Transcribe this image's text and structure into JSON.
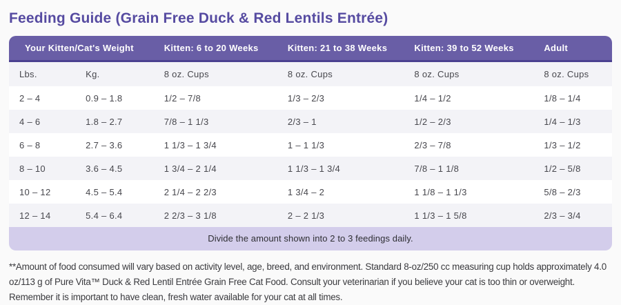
{
  "page": {
    "title": "Feeding Guide (Grain Free Duck & Red Lentils Entrée)"
  },
  "colors": {
    "page_bg": "#fafafa",
    "title_color": "#564ba1",
    "header_bg": "#695ea6",
    "header_border": "#4b4190",
    "subheader_bg": "#f3f3f7",
    "row_alt_bg": "#f3f3f7",
    "footer_bg": "#d3cdeb",
    "body_text": "#47474d",
    "footnote_text": "#3a3a3e"
  },
  "table": {
    "group_headers": [
      {
        "label": "Your Kitten/Cat's Weight",
        "span": 2
      },
      {
        "label": "Kitten: 6 to 20 Weeks",
        "span": 1
      },
      {
        "label": "Kitten: 21 to 38 Weeks",
        "span": 1
      },
      {
        "label": "Kitten: 39 to 52 Weeks",
        "span": 1
      },
      {
        "label": "Adult",
        "span": 1
      }
    ],
    "column_headers": [
      "Lbs.",
      "Kg.",
      "8 oz. Cups",
      "8 oz. Cups",
      "8 oz. Cups",
      "8 oz. Cups"
    ],
    "rows": [
      [
        "2 – 4",
        "0.9 – 1.8",
        "1/2 – 7/8",
        "1/3 – 2/3",
        "1/4 – 1/2",
        "1/8 – 1/4"
      ],
      [
        "4 – 6",
        "1.8 – 2.7",
        "7/8 – 1 1/3",
        "2/3 – 1",
        "1/2 – 2/3",
        "1/4 – 1/3"
      ],
      [
        "6 – 8",
        "2.7 – 3.6",
        "1 1/3 – 1 3/4",
        "1 – 1 1/3",
        "2/3 – 7/8",
        "1/3 – 1/2"
      ],
      [
        "8 – 10",
        "3.6 – 4.5",
        "1 3/4 – 2 1/4",
        "1 1/3 – 1 3/4",
        "7/8 – 1 1/8",
        "1/2 – 5/8"
      ],
      [
        "10 – 12",
        "4.5 – 5.4",
        "2 1/4 – 2 2/3",
        "1 3/4 – 2",
        "1 1/8 – 1 1/3",
        "5/8 – 2/3"
      ],
      [
        "12 – 14",
        "5.4 – 6.4",
        "2 2/3 – 3 1/8",
        "2 – 2 1/3",
        "1 1/3 – 1 5/8",
        "2/3 – 3/4"
      ]
    ],
    "footer_note": "Divide the amount shown into 2 to 3 feedings daily."
  },
  "footnote": "**Amount of food consumed will vary based on activity level, age, breed, and environment. Standard 8-oz/250 cc measuring cup holds approximately 4.0 oz/113 g of Pure Vita™ Duck & Red Lentil Entrée Grain Free Cat Food. Consult your veterinarian if you believe your cat is too thin or overweight. Remember it is important to have clean, fresh water available for your cat at all times."
}
